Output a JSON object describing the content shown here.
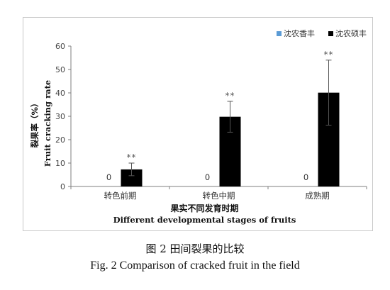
{
  "chart_data": {
    "type": "bar",
    "categories": [
      "转色前期",
      "转色中期",
      "成熟期"
    ],
    "series": [
      {
        "name": "沈农香丰",
        "color": "#5b9bd5",
        "values": [
          0,
          0,
          0
        ],
        "value_labels": [
          "0",
          "0",
          "0"
        ]
      },
      {
        "name": "沈农硕丰",
        "color": "#000000",
        "values": [
          7.3,
          29.8,
          40.1
        ],
        "error": [
          2.7,
          6.6,
          13.9
        ],
        "significance": [
          "**",
          "**",
          "**"
        ]
      }
    ],
    "ylim": [
      0,
      60
    ],
    "yticks": [
      0,
      10,
      20,
      30,
      40,
      50,
      60
    ],
    "xlabel": [
      "果实不同发育时期",
      "Different developmental stages of fruits"
    ],
    "ylabel": [
      "裂果率（%）",
      "Fruit cracking rate"
    ],
    "legend_position": "top-right",
    "grid": false
  },
  "caption": {
    "zh": "图 2 田间裂果的比较",
    "en": "Fig. 2 Comparison of cracked fruit in the field"
  }
}
